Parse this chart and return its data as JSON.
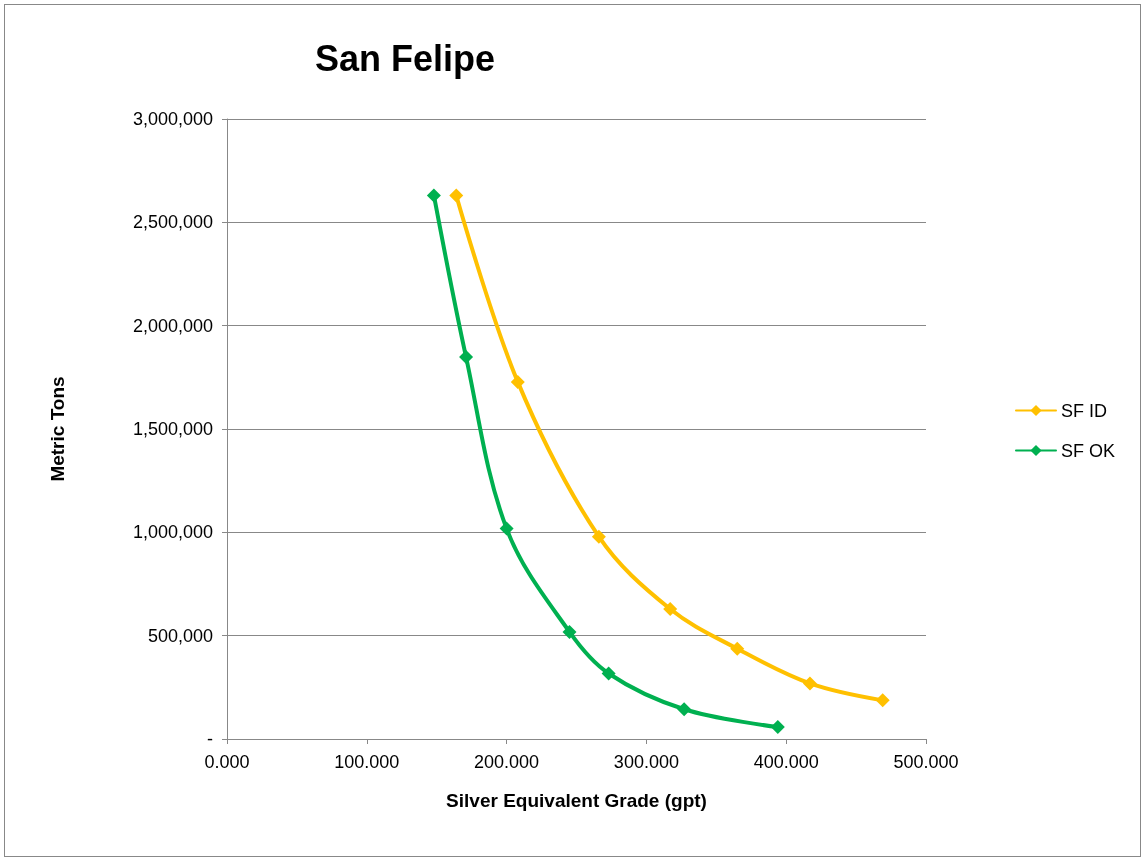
{
  "chart_data": {
    "type": "line",
    "title": "San Felipe",
    "xlabel": "Silver Equivalent Grade (gpt)",
    "ylabel": "Metric Tons",
    "xlim": [
      0,
      500
    ],
    "xticks": [
      {
        "value": 0,
        "label": "0.000"
      },
      {
        "value": 100,
        "label": "100.000"
      },
      {
        "value": 200,
        "label": "200.000"
      },
      {
        "value": 300,
        "label": "300.000"
      },
      {
        "value": 400,
        "label": "400.000"
      },
      {
        "value": 500,
        "label": "500.000"
      }
    ],
    "ylim": [
      0,
      3000000
    ],
    "yticks": [
      {
        "value": 0,
        "label": "-"
      },
      {
        "value": 500000,
        "label": "500,000"
      },
      {
        "value": 1000000,
        "label": "1,000,000"
      },
      {
        "value": 1500000,
        "label": "1,500,000"
      },
      {
        "value": 2000000,
        "label": "2,000,000"
      },
      {
        "value": 2500000,
        "label": "2,500,000"
      },
      {
        "value": 3000000,
        "label": "3,000,000"
      }
    ],
    "grid": "y",
    "legend": "right",
    "marker": "diamond",
    "line_style": "solid",
    "series": [
      {
        "name": "SF ID",
        "color": "#ffc000",
        "x": [
          164,
          208,
          266,
          317,
          365,
          417,
          469
        ],
        "values": [
          2630000,
          1728000,
          979000,
          629000,
          437000,
          269000,
          187000
        ]
      },
      {
        "name": "SF OK",
        "color": "#00b050",
        "x": [
          148,
          171,
          200,
          245,
          273,
          327,
          394
        ],
        "values": [
          2630000,
          1848000,
          1018000,
          518000,
          317000,
          144000,
          58000
        ]
      }
    ]
  }
}
